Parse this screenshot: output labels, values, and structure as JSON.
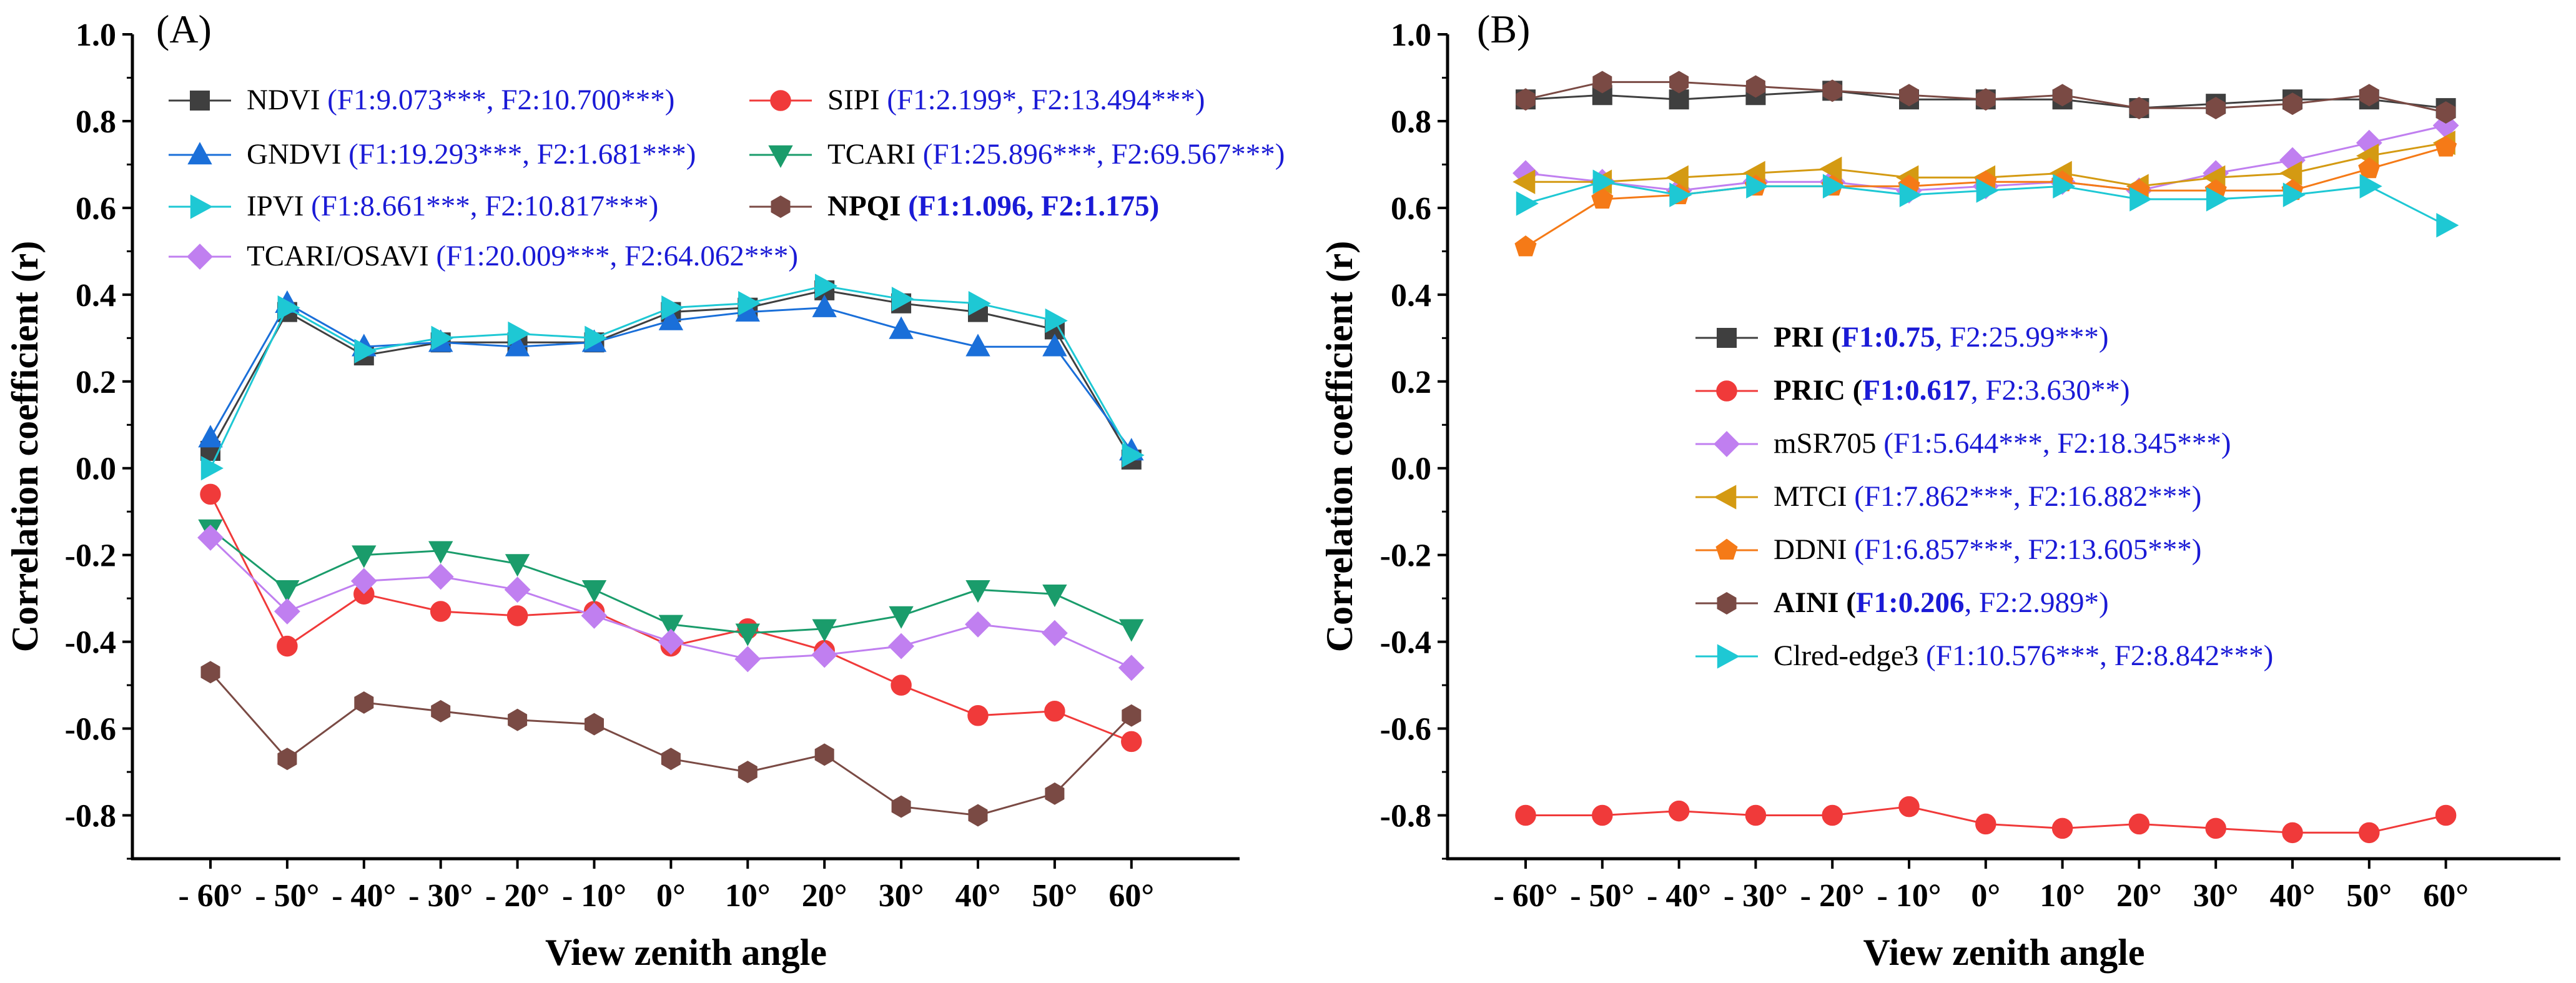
{
  "chart_data": [
    {
      "panel": "(A)",
      "type": "line",
      "xlabel": "View zenith angle",
      "ylabel": "Correlation coefficient (r)",
      "categories": [
        "- 60°",
        "- 50°",
        "- 40°",
        "- 30°",
        "- 20°",
        "- 10°",
        "0°",
        "10°",
        "20°",
        "30°",
        "40°",
        "50°",
        "60°"
      ],
      "ylim": [
        -0.9,
        1.0
      ],
      "yticks": [
        "1.0",
        "0.8",
        "0.6",
        "0.4",
        "0.2",
        "0.0",
        "-0.2",
        "-0.4",
        "-0.6",
        "-0.8"
      ],
      "grid": false,
      "legend_position": "top",
      "series": [
        {
          "name": "NDVI",
          "stat": "(F1:9.073***, F2:10.700***)",
          "bold": false,
          "color": "#3f3f3f",
          "marker": "square",
          "values": [
            0.04,
            0.36,
            0.26,
            0.29,
            0.29,
            0.29,
            0.36,
            0.37,
            0.41,
            0.38,
            0.36,
            0.32,
            0.02
          ]
        },
        {
          "name": "SIPI",
          "stat": "(F1:2.199*, F2:13.494***)",
          "bold": false,
          "color": "#f03a3a",
          "marker": "circle",
          "values": [
            -0.06,
            -0.41,
            -0.29,
            -0.33,
            -0.34,
            -0.33,
            -0.41,
            -0.37,
            -0.42,
            -0.5,
            -0.57,
            -0.56,
            -0.63
          ]
        },
        {
          "name": "GNDVI",
          "stat": "(F1:19.293***, F2:1.681***)",
          "bold": false,
          "color": "#1a6fd9",
          "marker": "triangle-up",
          "values": [
            0.07,
            0.38,
            0.28,
            0.29,
            0.28,
            0.29,
            0.34,
            0.36,
            0.37,
            0.32,
            0.28,
            0.28,
            0.04
          ]
        },
        {
          "name": "TCARI",
          "stat": "(F1:25.896***, F2:69.567***)",
          "bold": false,
          "color": "#1a9c6b",
          "marker": "triangle-down",
          "values": [
            -0.14,
            -0.28,
            -0.2,
            -0.19,
            -0.22,
            -0.28,
            -0.36,
            -0.38,
            -0.37,
            -0.34,
            -0.28,
            -0.29,
            -0.37
          ]
        },
        {
          "name": "IPVI",
          "stat": "(F1:8.661***, F2:10.817***)",
          "bold": false,
          "color": "#1ec8d4",
          "marker": "triangle-right",
          "values": [
            0.0,
            0.37,
            0.27,
            0.3,
            0.31,
            0.3,
            0.37,
            0.38,
            0.42,
            0.39,
            0.38,
            0.34,
            0.03
          ]
        },
        {
          "name": "NPQI",
          "stat": "(F1:1.096, F2:1.175)",
          "bold": true,
          "color": "#7a4a44",
          "marker": "hexagon",
          "values": [
            -0.47,
            -0.67,
            -0.54,
            -0.56,
            -0.58,
            -0.59,
            -0.67,
            -0.7,
            -0.66,
            -0.78,
            -0.8,
            -0.75,
            -0.57
          ]
        },
        {
          "name": "TCARI/OSAVI",
          "stat": "(F1:20.009***, F2:64.062***)",
          "bold": false,
          "color": "#c07ff0",
          "marker": "diamond",
          "values": [
            -0.16,
            -0.33,
            -0.26,
            -0.25,
            -0.28,
            -0.34,
            -0.4,
            -0.44,
            -0.43,
            -0.41,
            -0.36,
            -0.38,
            -0.46
          ]
        }
      ]
    },
    {
      "panel": "(B)",
      "type": "line",
      "xlabel": "View zenith angle",
      "ylabel": "Correlation coefficient (r)",
      "categories": [
        "- 60°",
        "- 50°",
        "- 40°",
        "- 30°",
        "- 20°",
        "- 10°",
        "0°",
        "10°",
        "20°",
        "30°",
        "40°",
        "50°",
        "60°"
      ],
      "ylim": [
        -0.9,
        1.0
      ],
      "yticks": [
        "1.0",
        "0.8",
        "0.6",
        "0.4",
        "0.2",
        "0.0",
        "-0.2",
        "-0.4",
        "-0.6",
        "-0.8"
      ],
      "grid": false,
      "legend_position": "center",
      "series": [
        {
          "name": "PRI",
          "stat_parts": [
            {
              "text": "(",
              "blue": false,
              "bold": true
            },
            {
              "text": "F1:0.75",
              "blue": true,
              "bold": true
            },
            {
              "text": ", F2:25.99***)",
              "blue": true,
              "bold": false
            }
          ],
          "bold": true,
          "color": "#3f3f3f",
          "marker": "square",
          "values": [
            0.85,
            0.86,
            0.85,
            0.86,
            0.87,
            0.85,
            0.85,
            0.85,
            0.83,
            0.84,
            0.85,
            0.85,
            0.83
          ]
        },
        {
          "name": "PRIC",
          "stat_parts": [
            {
              "text": "(",
              "blue": false,
              "bold": true
            },
            {
              "text": "F1:0.617",
              "blue": true,
              "bold": true
            },
            {
              "text": ", F2:3.630**)",
              "blue": true,
              "bold": false
            }
          ],
          "bold": true,
          "color": "#f03a3a",
          "marker": "circle",
          "values": [
            -0.8,
            -0.8,
            -0.79,
            -0.8,
            -0.8,
            -0.78,
            -0.82,
            -0.83,
            -0.82,
            -0.83,
            -0.84,
            -0.84,
            -0.8
          ]
        },
        {
          "name": "mSR705",
          "stat_parts": [
            {
              "text": "(F1:5.644***, F2:18.345***)",
              "blue": true,
              "bold": false
            }
          ],
          "bold": false,
          "color": "#c07ff0",
          "marker": "diamond",
          "values": [
            0.68,
            0.66,
            0.64,
            0.66,
            0.66,
            0.64,
            0.65,
            0.66,
            0.64,
            0.68,
            0.71,
            0.75,
            0.79
          ]
        },
        {
          "name": "MTCI",
          "stat_parts": [
            {
              "text": "(F1:7.862***, F2:16.882***)",
              "blue": true,
              "bold": false
            }
          ],
          "bold": false,
          "color": "#d49a12",
          "marker": "triangle-left",
          "values": [
            0.66,
            0.66,
            0.67,
            0.68,
            0.69,
            0.67,
            0.67,
            0.68,
            0.65,
            0.67,
            0.68,
            0.72,
            0.75
          ]
        },
        {
          "name": "DDNI",
          "stat_parts": [
            {
              "text": "(F1:6.857***, F2:13.605***)",
              "blue": true,
              "bold": false
            }
          ],
          "bold": false,
          "color": "#f57a17",
          "marker": "pentagon",
          "values": [
            0.51,
            0.62,
            0.63,
            0.65,
            0.65,
            0.65,
            0.66,
            0.66,
            0.64,
            0.64,
            0.64,
            0.69,
            0.74
          ]
        },
        {
          "name": "AINI",
          "stat_parts": [
            {
              "text": "(",
              "blue": false,
              "bold": true
            },
            {
              "text": "F1:0.206",
              "blue": true,
              "bold": true
            },
            {
              "text": ", F2:2.989*)",
              "blue": true,
              "bold": false
            }
          ],
          "bold": true,
          "color": "#7a4a44",
          "marker": "hexagon",
          "values": [
            0.85,
            0.89,
            0.89,
            0.88,
            0.87,
            0.86,
            0.85,
            0.86,
            0.83,
            0.83,
            0.84,
            0.86,
            0.82
          ]
        },
        {
          "name": "Clred-edge3",
          "stat_parts": [
            {
              "text": "(F1:10.576***, F2:8.842***)",
              "blue": true,
              "bold": false
            }
          ],
          "bold": false,
          "color": "#1ec8d4",
          "marker": "triangle-right",
          "values": [
            0.61,
            0.66,
            0.63,
            0.65,
            0.65,
            0.63,
            0.64,
            0.65,
            0.62,
            0.62,
            0.63,
            0.65,
            0.56
          ]
        }
      ]
    }
  ]
}
